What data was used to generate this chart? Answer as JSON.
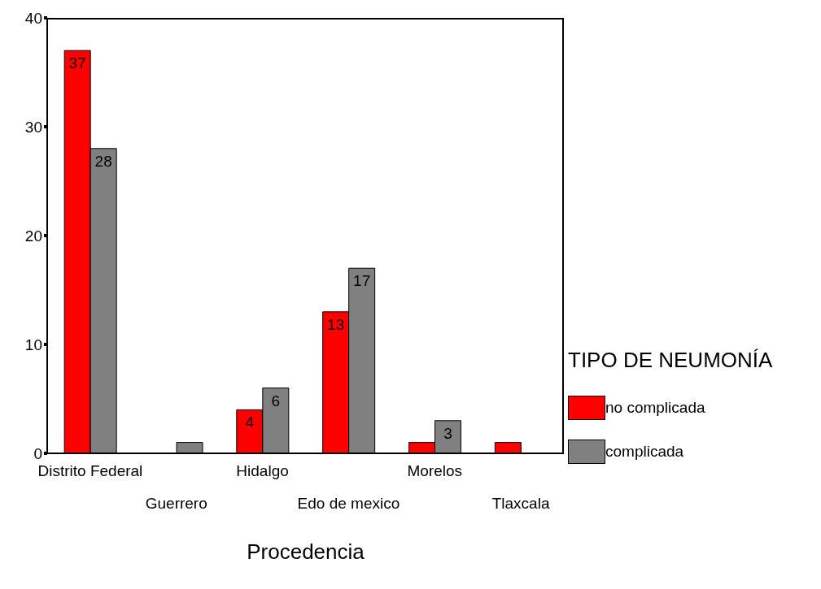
{
  "chart_data": {
    "type": "bar",
    "xlabel": "Procedencia",
    "legend_title": "TIPO DE NEUMONÍA",
    "categories": [
      "Distrito Federal",
      "Guerrero",
      "Hidalgo",
      "Edo de mexico",
      "Morelos",
      "Tlaxcala"
    ],
    "series": [
      {
        "name": "no complicada",
        "color": "#ff0000",
        "values": [
          37,
          0,
          4,
          13,
          1,
          1
        ],
        "value_labels": [
          "37",
          null,
          "4",
          "13",
          null,
          null
        ]
      },
      {
        "name": "complicada",
        "color": "#808080",
        "values": [
          28,
          1,
          6,
          17,
          3,
          0
        ],
        "value_labels": [
          "28",
          null,
          "6",
          "17",
          "3",
          null
        ]
      }
    ],
    "ylim": [
      0,
      40
    ],
    "yticks": [
      0,
      10,
      20,
      30,
      40
    ],
    "grid": false,
    "legend": "right"
  }
}
